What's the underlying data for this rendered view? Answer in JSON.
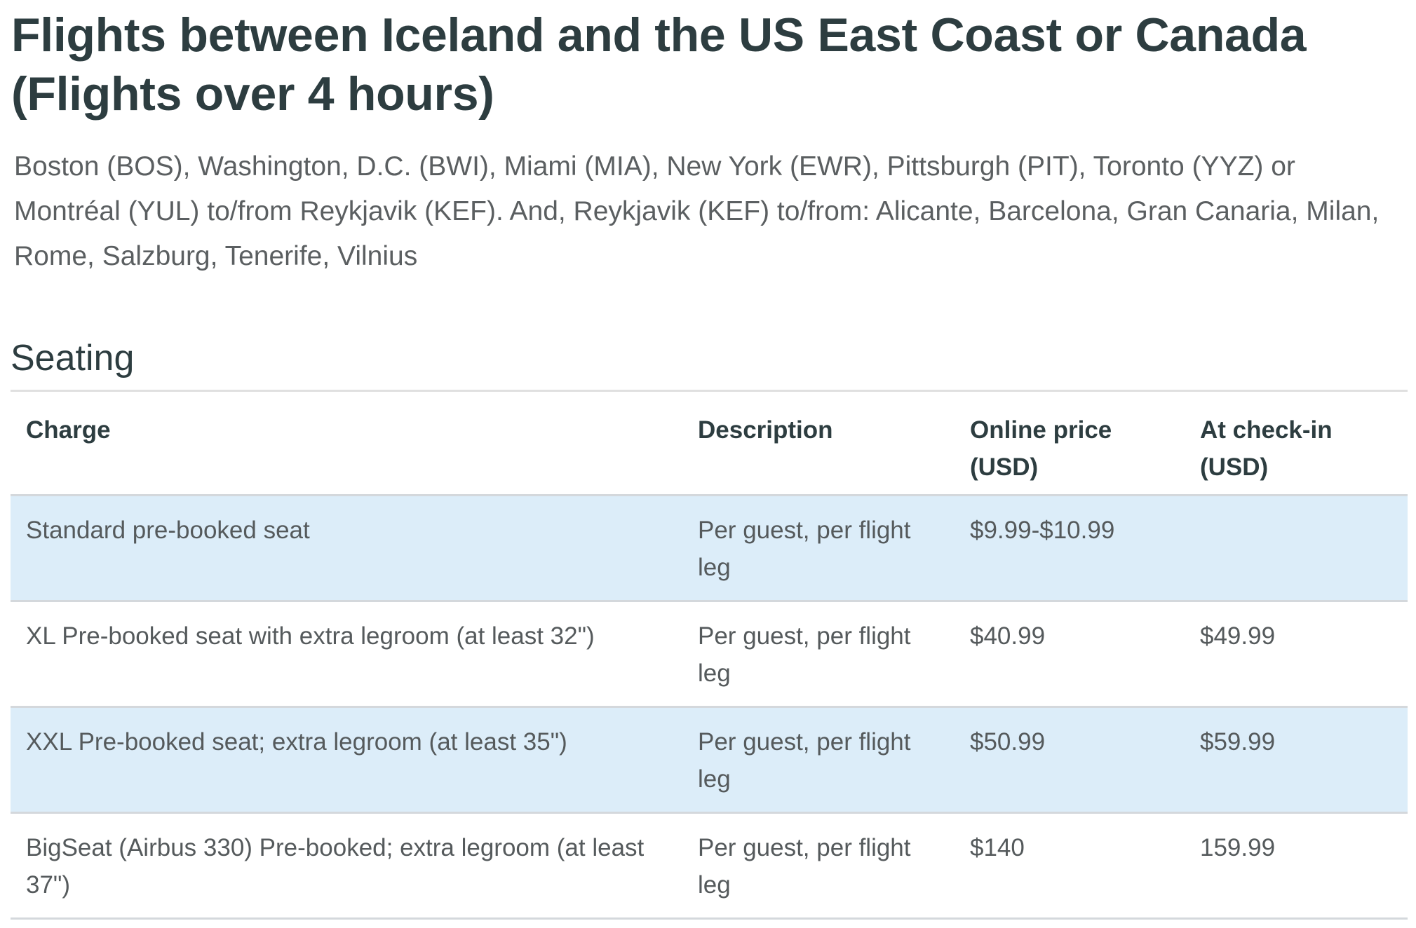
{
  "page": {
    "title": "Flights between Iceland and the US East Coast or Canada (Flights over 4 hours)",
    "intro": "Boston (BOS), Washington, D.C. (BWI), Miami (MIA), New York (EWR), Pittsburgh (PIT), Toronto (YYZ) or Montréal (YUL) to/from Reykjavik (KEF). And, Reykjavik (KEF) to/from: Alicante, Barcelona, Gran Canaria, Milan, Rome, Salzburg, Tenerife, Vilnius"
  },
  "seating": {
    "heading": "Seating",
    "columns": [
      "Charge",
      "Description",
      "Online price (USD)",
      "At check-in (USD)"
    ],
    "rows": [
      {
        "charge": "Standard pre-booked seat",
        "description": "Per guest, per flight leg",
        "online_price": "$9.99-$10.99",
        "at_checkin": ""
      },
      {
        "charge": "XL Pre-booked seat with extra legroom (at least 32\")",
        "description": "Per guest, per flight leg",
        "online_price": "$40.99",
        "at_checkin": "$49.99"
      },
      {
        "charge": "XXL Pre-booked seat; extra legroom (at least 35\")",
        "description": "Per guest, per flight leg",
        "online_price": "$50.99",
        "at_checkin": "$59.99"
      },
      {
        "charge": "BigSeat (Airbus 330) Pre-booked; extra legroom (at least 37\")",
        "description": "Per guest, per flight leg",
        "online_price": "$140",
        "at_checkin": "159.99"
      }
    ]
  },
  "colors": {
    "heading_text": "#2d3d40",
    "body_text": "#555a5c",
    "shaded_row_bg": "#dcedf9",
    "border": "#d4d8dc"
  }
}
